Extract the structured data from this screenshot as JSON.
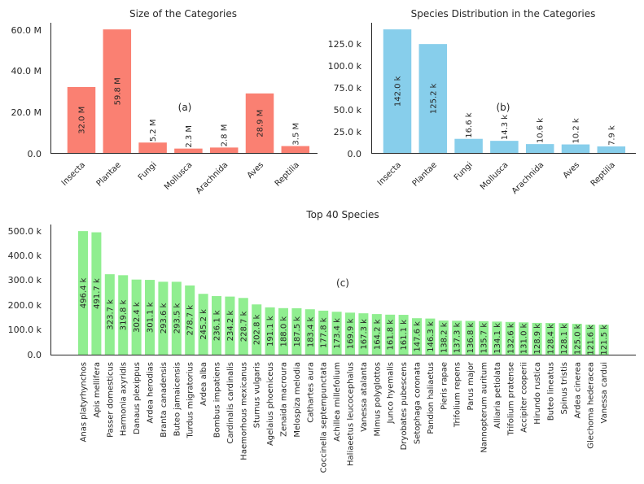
{
  "chart_data": [
    {
      "type": "bar",
      "title": "Size of the Categories",
      "panel_label": "(a)",
      "categories": [
        "Insecta",
        "Plantae",
        "Fungi",
        "Mollusca",
        "Arachnida",
        "Aves",
        "Reptilia"
      ],
      "values": [
        32.0,
        59.8,
        5.2,
        2.3,
        2.8,
        28.9,
        3.5
      ],
      "labels": [
        "32.0 M",
        "59.8 M",
        "5.2 M",
        "2.3 M",
        "2.8 M",
        "28.9 M",
        "3.5 M"
      ],
      "yticks": [
        "0.0",
        "20.0 M",
        "40.0 M",
        "60.0 M"
      ],
      "ylim": [
        0,
        62.8
      ],
      "color": "#fa8072"
    },
    {
      "type": "bar",
      "title": "Species Distribution in the Categories",
      "panel_label": "(b)",
      "categories": [
        "Insecta",
        "Plantae",
        "Fungi",
        "Mollusca",
        "Arachnida",
        "Aves",
        "Reptilia"
      ],
      "values": [
        142.0,
        125.2,
        16.6,
        14.3,
        10.6,
        10.2,
        7.9
      ],
      "labels": [
        "142.0 k",
        "125.2 k",
        "16.6 k",
        "14.3 k",
        "10.6 k",
        "10.2 k",
        "7.9 k"
      ],
      "yticks": [
        "0.0",
        "25.0 k",
        "50.0 k",
        "75.0 k",
        "100.0 k",
        "125.0 k"
      ],
      "ylim": [
        0,
        149.1
      ],
      "color": "#87ceeb"
    },
    {
      "type": "bar",
      "title": "Top 40 Species",
      "panel_label": "(c)",
      "categories": [
        "Anas platyrhynchos",
        "Apis mellifera",
        "Passer domesticus",
        "Harmonia axyridis",
        "Danaus plexippus",
        "Ardea herodias",
        "Branta canadensis",
        "Buteo jamaicensis",
        "Turdus migratorius",
        "Ardea alba",
        "Bombus impatiens",
        "Cardinalis cardinalis",
        "Haemorhous mexicanus",
        "Sturnus vulgaris",
        "Agelaius phoeniceus",
        "Zenaida macroura",
        "Melospiza melodia",
        "Cathartes aura",
        "Coccinella septempunctata",
        "Achillea millefolium",
        "Haliaeetus leucocephalus",
        "Vanessa atalanta",
        "Mimus polyglottos",
        "Junco hyemalis",
        "Dryobates pubescens",
        "Setophaga coronata",
        "Pandion haliaetus",
        "Pieris rapae",
        "Trifolium repens",
        "Parus major",
        "Nannopterum auritum",
        "Alliaria petiolata",
        "Trifolium pratense",
        "Accipiter cooperii",
        "Hirundo rustica",
        "Buteo lineatus",
        "Spinus tristis",
        "Ardea cinerea",
        "Glechoma hederacea",
        "Vanessa cardui"
      ],
      "values": [
        496.4,
        491.7,
        323.7,
        319.8,
        302.4,
        301.1,
        293.6,
        293.5,
        278.7,
        245.2,
        236.1,
        234.2,
        228.7,
        202.8,
        191.1,
        188.0,
        187.5,
        183.4,
        177.8,
        173.4,
        169.9,
        167.3,
        164.2,
        161.8,
        161.1,
        147.6,
        146.3,
        138.2,
        137.3,
        136.8,
        135.7,
        134.1,
        132.6,
        131.0,
        128.9,
        128.4,
        128.1,
        125.0,
        121.6,
        121.5
      ],
      "labels": [
        "496.4 k",
        "491.7 k",
        "323.7 k",
        "319.8 k",
        "302.4 k",
        "301.1 k",
        "293.6 k",
        "293.5 k",
        "278.7 k",
        "245.2 k",
        "236.1 k",
        "234.2 k",
        "228.7 k",
        "202.8 k",
        "191.1 k",
        "188.0 k",
        "187.5 k",
        "183.4 k",
        "177.8 k",
        "173.4 k",
        "169.9 k",
        "167.3 k",
        "164.2 k",
        "161.8 k",
        "161.1 k",
        "147.6 k",
        "146.3 k",
        "138.2 k",
        "137.3 k",
        "136.8 k",
        "135.7 k",
        "134.1 k",
        "132.6 k",
        "131.0 k",
        "128.9 k",
        "128.4 k",
        "128.1 k",
        "125.0 k",
        "121.6 k",
        "121.5 k"
      ],
      "yticks": [
        "0.0",
        "100.0 k",
        "200.0 k",
        "300.0 k",
        "400.0 k",
        "500.0 k"
      ],
      "ylim": [
        0,
        521.2
      ],
      "color": "#90ee90"
    }
  ]
}
